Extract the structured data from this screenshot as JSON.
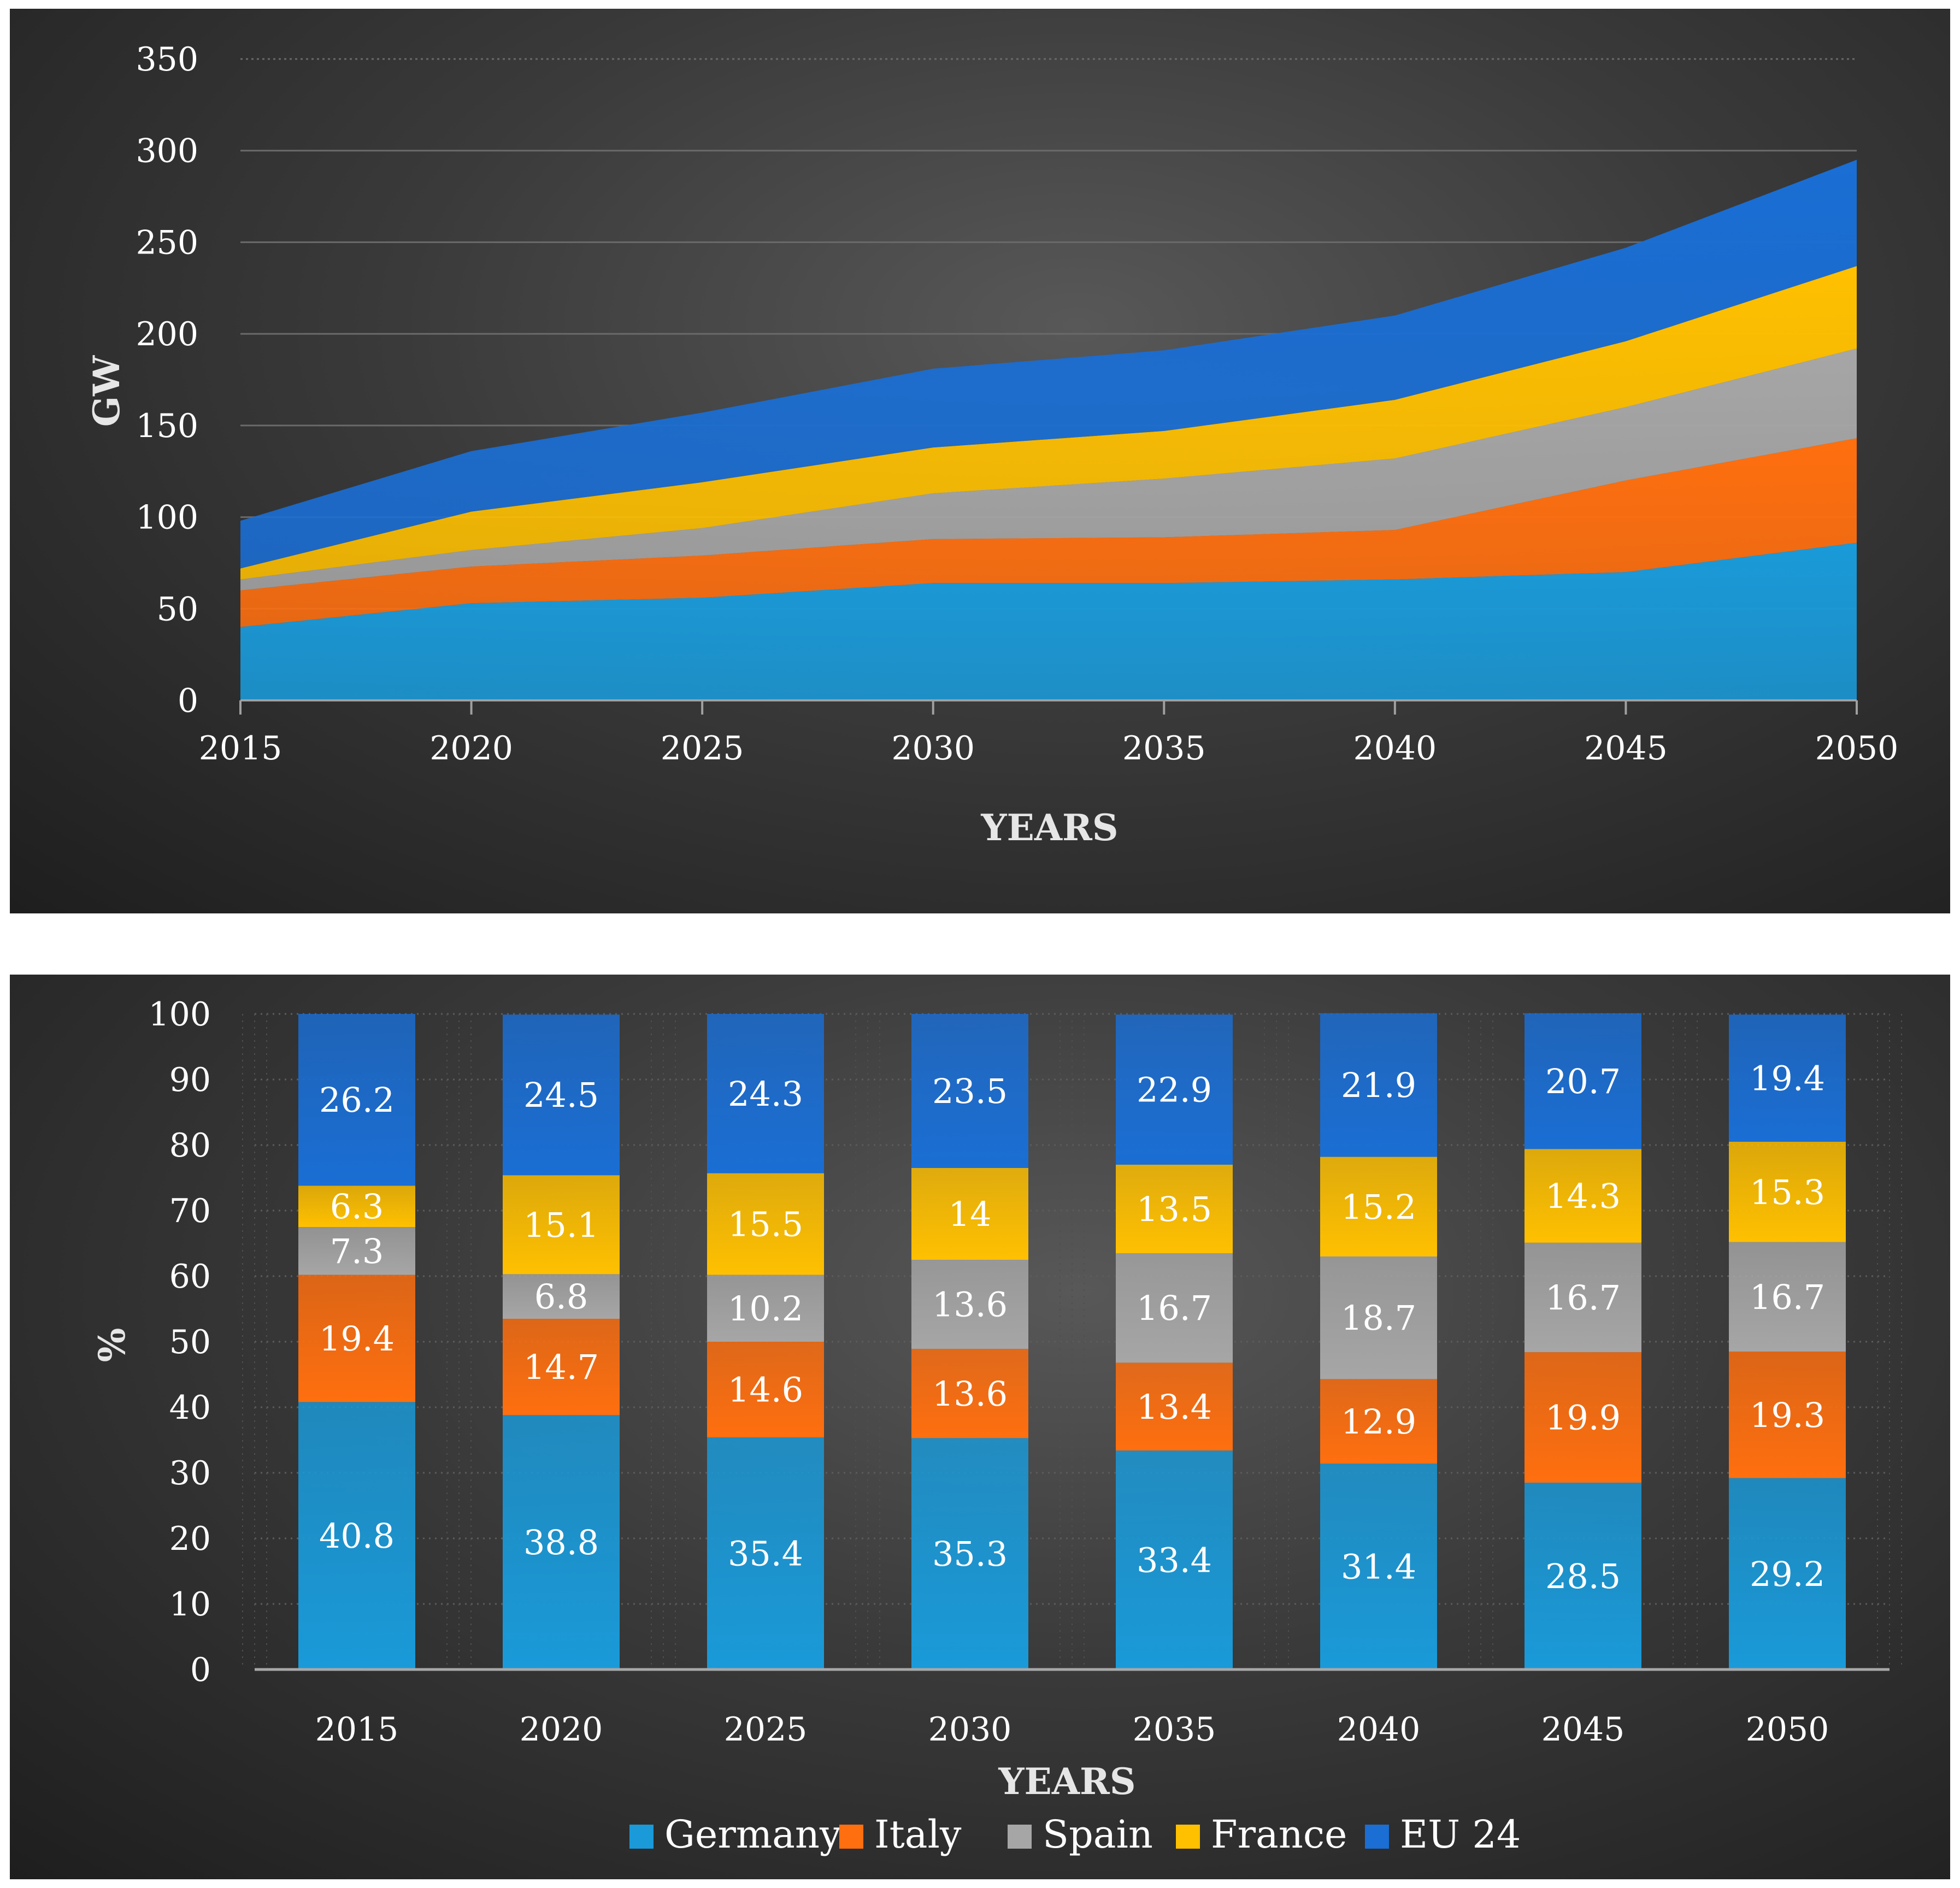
{
  "colors": {
    "Germany": "#1a9ad9",
    "Italy": "#ff6f0f",
    "Spain": "#a6a6a6",
    "France": "#ffc000",
    "EU 24": "#1a6ed4"
  },
  "chart_data": [
    {
      "type": "area",
      "stacked": true,
      "title": "",
      "xlabel": "YEARS",
      "ylabel": "GW",
      "x": [
        "2015",
        "2020",
        "2025",
        "2030",
        "2035",
        "2040",
        "2045",
        "2050"
      ],
      "ylim": [
        0,
        350
      ],
      "yticks": [
        0,
        50,
        100,
        150,
        200,
        250,
        300,
        350
      ],
      "grid": true,
      "legend": "none",
      "series": [
        {
          "key": "Germany",
          "values": [
            40,
            53,
            56,
            64,
            64,
            66,
            70,
            86
          ]
        },
        {
          "key": "Italy",
          "values": [
            20,
            20,
            23,
            24,
            25,
            27,
            50,
            57
          ]
        },
        {
          "key": "Spain",
          "values": [
            6,
            9,
            15,
            25,
            32,
            39,
            40,
            49
          ]
        },
        {
          "key": "France",
          "values": [
            6,
            21,
            25,
            25,
            26,
            32,
            36,
            45
          ]
        },
        {
          "key": "EU 24",
          "values": [
            26,
            33,
            38,
            43,
            44,
            46,
            51,
            58
          ]
        }
      ]
    },
    {
      "type": "bar",
      "stacked": true,
      "title": "",
      "xlabel": "YEARS",
      "ylabel": "%",
      "categories": [
        "2015",
        "2020",
        "2025",
        "2030",
        "2035",
        "2040",
        "2045",
        "2050"
      ],
      "ylim": [
        0,
        100
      ],
      "yticks": [
        0,
        10,
        20,
        30,
        40,
        50,
        60,
        70,
        80,
        90,
        100
      ],
      "grid": true,
      "legend": "bottom",
      "series": [
        {
          "name": "Germany",
          "values": [
            40.8,
            38.8,
            35.4,
            35.3,
            33.4,
            31.4,
            28.5,
            29.2
          ],
          "labels": [
            "40.8",
            "38.8",
            "35.4",
            "35.3",
            "33.4",
            "31.4",
            "28.5",
            "29.2"
          ]
        },
        {
          "name": "Italy",
          "values": [
            19.4,
            14.7,
            14.6,
            13.6,
            13.4,
            12.9,
            19.9,
            19.3
          ],
          "labels": [
            "19.4",
            "14.7",
            "14.6",
            "13.6",
            "13.4",
            "12.9",
            "19.9",
            "19.3"
          ]
        },
        {
          "name": "Spain",
          "values": [
            7.3,
            6.8,
            10.2,
            13.6,
            16.7,
            18.7,
            16.7,
            16.7
          ],
          "labels": [
            "7.3",
            "6.8",
            "10.2",
            "13.6",
            "16.7",
            "18.7",
            "16.7",
            "16.7"
          ]
        },
        {
          "name": "France",
          "values": [
            6.3,
            15.1,
            15.5,
            14,
            13.5,
            15.2,
            14.3,
            15.3
          ],
          "labels": [
            "6.3",
            "15.1",
            "15.5",
            "14",
            "13.5",
            "15.2",
            "14.3",
            "15.3"
          ]
        },
        {
          "name": "EU 24",
          "values": [
            26.2,
            24.5,
            24.3,
            23.5,
            22.9,
            21.9,
            20.7,
            19.4
          ],
          "labels": [
            "26.2",
            "24.5",
            "24.3",
            "23.5",
            "22.9",
            "21.9",
            "20.7",
            "19.4"
          ]
        }
      ]
    }
  ]
}
